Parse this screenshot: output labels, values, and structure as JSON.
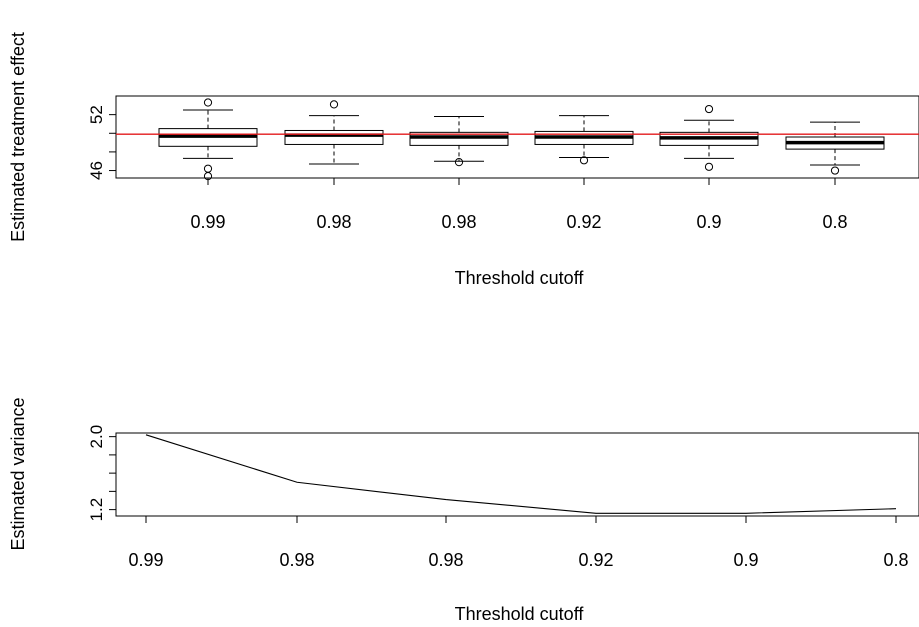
{
  "colors": {
    "reference_line": "#e31a1c",
    "ink": "#000000",
    "background": "#ffffff"
  },
  "chart_data": [
    {
      "type": "box",
      "xlabel": "Threshold cutoff",
      "ylabel": "Estimated treatment effect",
      "categories": [
        "0.99",
        "0.98",
        "0.98",
        "0.92",
        "0.9",
        "0.8"
      ],
      "yticks": [
        46,
        48,
        50,
        52
      ],
      "ytick_labels": [
        "46",
        "",
        "",
        "52"
      ],
      "ylim": [
        45.2,
        54.0
      ],
      "reference_line": 49.9,
      "boxes": [
        {
          "whisker_low": 47.3,
          "q1": 48.6,
          "median": 49.7,
          "q3": 50.5,
          "whisker_high": 52.5,
          "outliers": [
            53.3,
            46.2,
            45.4
          ]
        },
        {
          "whisker_low": 46.7,
          "q1": 48.8,
          "median": 49.8,
          "q3": 50.3,
          "whisker_high": 51.9,
          "outliers": [
            53.1
          ]
        },
        {
          "whisker_low": 47.0,
          "q1": 48.7,
          "median": 49.6,
          "q3": 50.1,
          "whisker_high": 51.8,
          "outliers": [
            46.9
          ]
        },
        {
          "whisker_low": 47.4,
          "q1": 48.8,
          "median": 49.6,
          "q3": 50.2,
          "whisker_high": 51.9,
          "outliers": [
            47.1
          ]
        },
        {
          "whisker_low": 47.3,
          "q1": 48.7,
          "median": 49.5,
          "q3": 50.1,
          "whisker_high": 51.4,
          "outliers": [
            52.6,
            46.4
          ]
        },
        {
          "whisker_low": 46.6,
          "q1": 48.3,
          "median": 49.0,
          "q3": 49.6,
          "whisker_high": 51.2,
          "outliers": [
            46.0
          ]
        }
      ]
    },
    {
      "type": "line",
      "xlabel": "Threshold cutoff",
      "ylabel": "Estimated variance",
      "categories": [
        "0.99",
        "0.98",
        "0.98",
        "0.92",
        "0.9",
        "0.8"
      ],
      "series": [
        {
          "values": [
            2.02,
            1.5,
            1.31,
            1.16,
            1.16,
            1.21
          ]
        }
      ],
      "yticks": [
        1.2,
        1.4,
        1.6,
        1.8,
        2.0
      ],
      "ytick_labels": [
        "1.2",
        "",
        "",
        "",
        "2.0"
      ],
      "ylim": [
        1.13,
        2.04
      ]
    }
  ]
}
